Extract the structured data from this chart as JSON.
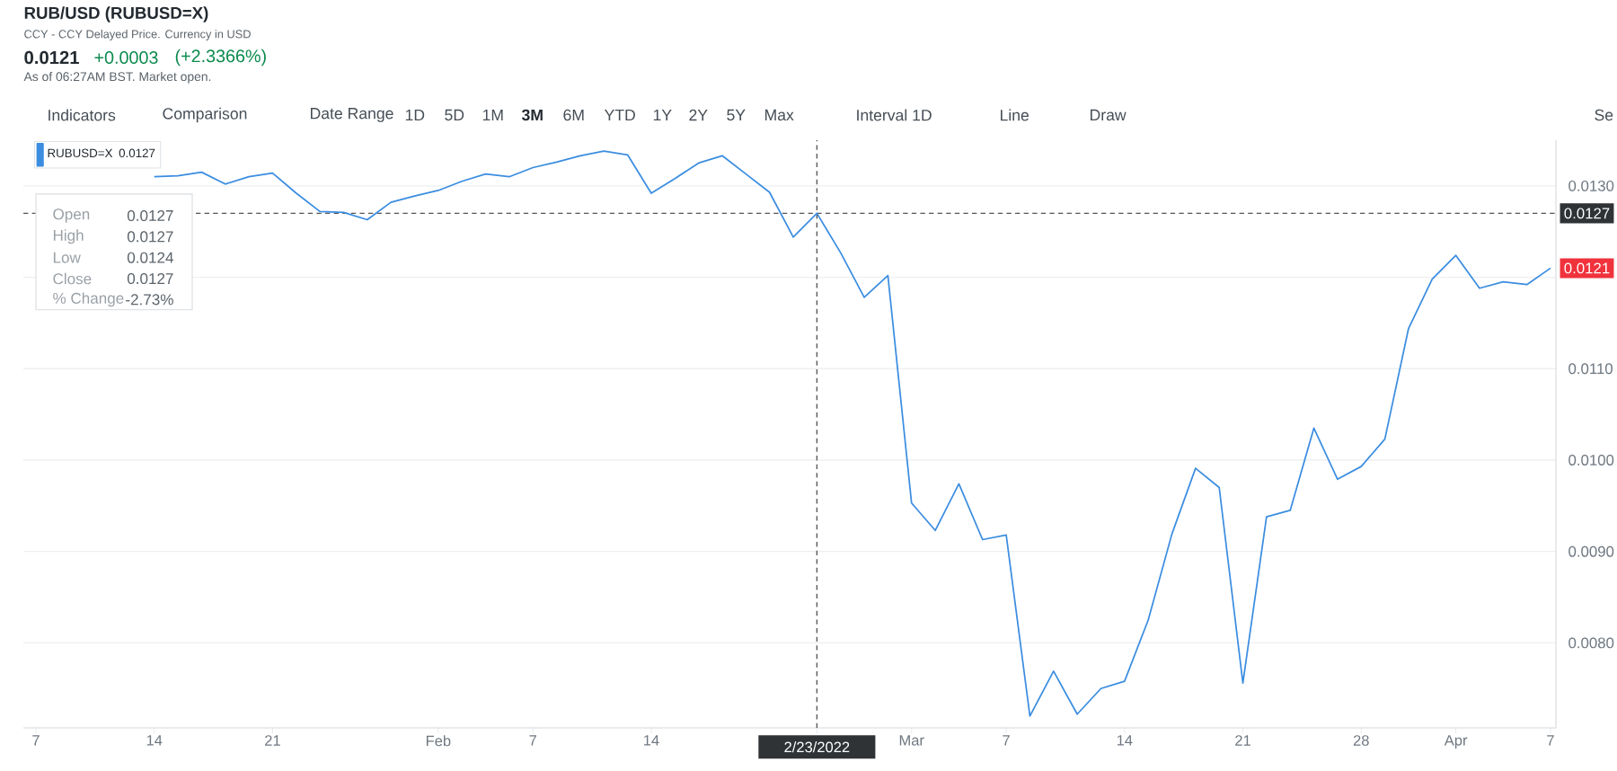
{
  "chart_data": {
    "type": "line",
    "title": "RUB/USD (RUBUSD=X)",
    "subtitle": "CCY - CCY Delayed Price. Currency in USD",
    "categories": [
      "7",
      null,
      null,
      null,
      null,
      "14",
      null,
      null,
      null,
      null,
      "21",
      null,
      null,
      null,
      null,
      null,
      null,
      "Feb",
      null,
      null,
      null,
      "7",
      null,
      null,
      null,
      null,
      "14",
      null,
      null,
      null,
      null,
      null,
      null,
      "2/23/2022",
      null,
      null,
      null,
      "Mar",
      null,
      null,
      null,
      "7",
      null,
      null,
      null,
      null,
      "14",
      null,
      null,
      null,
      null,
      "21",
      null,
      null,
      null,
      null,
      "28",
      null,
      null,
      null,
      "Apr",
      null,
      null,
      null,
      "7"
    ],
    "series": [
      {
        "name": "RUBUSD=X",
        "color": "#3b8de0",
        "values": [
          null,
          null,
          null,
          null,
          null,
          0.0131,
          0.01311,
          0.01315,
          0.01302,
          0.0131,
          0.01314,
          0.01292,
          0.01272,
          0.01271,
          0.01263,
          0.01282,
          0.01289,
          0.01295,
          0.01305,
          0.01313,
          0.0131,
          0.0132,
          0.01326,
          0.01333,
          0.01338,
          0.01334,
          0.01292,
          0.01308,
          0.01325,
          0.01333,
          0.01313,
          0.01293,
          0.01244,
          0.0127,
          0.01227,
          0.01178,
          0.01202,
          0.00953,
          0.00923,
          0.00974,
          0.00913,
          0.00918,
          0.0072,
          0.00769,
          0.00722,
          0.0075,
          0.00758,
          0.00825,
          0.00919,
          0.00991,
          0.0097,
          0.00756,
          0.00938,
          0.00945,
          0.01035,
          0.00979,
          0.00993,
          0.01023,
          0.01144,
          0.01198,
          0.01224,
          0.01188,
          0.01195,
          0.01192,
          0.0121
        ]
      }
    ],
    "ylim": [
      0.00707,
      0.0135
    ],
    "yticks": [
      {
        "value": 0.008,
        "label": "0.0080"
      },
      {
        "value": 0.009,
        "label": "0.0090"
      },
      {
        "value": 0.01,
        "label": "0.0100"
      },
      {
        "value": 0.011,
        "label": "0.0110"
      },
      {
        "value": 0.012,
        "label": null
      },
      {
        "value": 0.013,
        "label": "0.0130"
      }
    ],
    "grid": "y",
    "legend": "top left",
    "ref_lines": [
      {
        "axis": "y",
        "value": 0.0127,
        "label": "0.0127",
        "line_style": "dashed",
        "color": "#555555"
      },
      {
        "axis": "x",
        "value": "2/23/2022",
        "line_style": "dashed",
        "color": "#555555"
      }
    ],
    "annotations": [
      "0.0121",
      "+0.0003",
      "(+2.3366%)",
      "As of 06:27AM BST. Market open.",
      "Indicators",
      "Comparison",
      "Date Range",
      "1D",
      "5D",
      "1M",
      "3M",
      "6M",
      "YTD",
      "1Y",
      "2Y",
      "5Y",
      "Max",
      "Interval 1D",
      "Line",
      "Draw",
      "Se",
      "0.0127",
      "Open",
      "0.0127",
      "High",
      "0.0127",
      "Low",
      "0.0124",
      "Close",
      "0.0127",
      "% Change",
      "-2.73%",
      {
        "text": "0.0121",
        "y": 0.0121
      }
    ]
  }
}
